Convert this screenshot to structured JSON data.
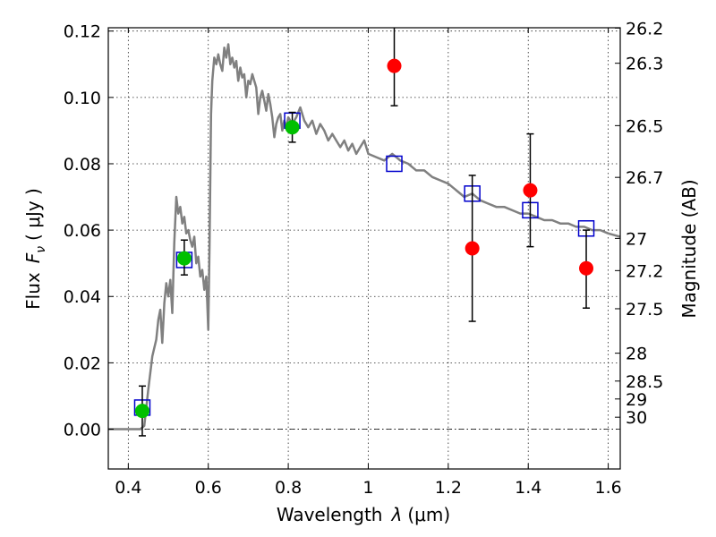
{
  "chart_data": {
    "type": "scatter",
    "xlabel_text": "Wavelength",
    "xlabel_symbol": "λ",
    "xlabel_unit": "(μm)",
    "ylabel_text": "Flux",
    "ylabel_symbol": "F",
    "ylabel_subscript": "ν",
    "ylabel_unit": "( μJy )",
    "y2label": "Magnitude (AB)",
    "xlim": [
      0.35,
      1.63
    ],
    "ylim": [
      -0.012,
      0.121
    ],
    "grid": true,
    "x_ticks": [
      {
        "value": 0.4,
        "label": "0.4"
      },
      {
        "value": 0.6,
        "label": "0.6"
      },
      {
        "value": 0.8,
        "label": "0.8"
      },
      {
        "value": 1.0,
        "label": "1"
      },
      {
        "value": 1.2,
        "label": "1.2"
      },
      {
        "value": 1.4,
        "label": "1.4"
      },
      {
        "value": 1.6,
        "label": "1.6"
      }
    ],
    "y_ticks": [
      {
        "value": 0.0,
        "label": "0.00"
      },
      {
        "value": 0.02,
        "label": "0.02"
      },
      {
        "value": 0.04,
        "label": "0.04"
      },
      {
        "value": 0.06,
        "label": "0.06"
      },
      {
        "value": 0.08,
        "label": "0.08"
      },
      {
        "value": 0.1,
        "label": "0.10"
      },
      {
        "value": 0.12,
        "label": "0.12"
      }
    ],
    "mag_ticks": [
      {
        "flux": 0.1209,
        "label": "26.2"
      },
      {
        "flux": 0.1103,
        "label": "26.3"
      },
      {
        "flux": 0.0915,
        "label": "26.5"
      },
      {
        "flux": 0.0759,
        "label": "26.7"
      },
      {
        "flux": 0.0575,
        "label": "27"
      },
      {
        "flux": 0.0478,
        "label": "27.2"
      },
      {
        "flux": 0.0363,
        "label": "27.5"
      },
      {
        "flux": 0.0229,
        "label": "28"
      },
      {
        "flux": 0.0145,
        "label": "28.5"
      },
      {
        "flux": 0.0091,
        "label": "29"
      },
      {
        "flux": 0.0036,
        "label": "30"
      }
    ],
    "model_sed": {
      "color": "#808080",
      "x": [
        0.35,
        0.43,
        0.44,
        0.45,
        0.46,
        0.47,
        0.475,
        0.48,
        0.485,
        0.49,
        0.495,
        0.5,
        0.505,
        0.51,
        0.515,
        0.52,
        0.525,
        0.53,
        0.535,
        0.54,
        0.545,
        0.55,
        0.555,
        0.56,
        0.565,
        0.57,
        0.575,
        0.58,
        0.585,
        0.59,
        0.595,
        0.6,
        0.603,
        0.607,
        0.61,
        0.615,
        0.62,
        0.625,
        0.63,
        0.635,
        0.64,
        0.645,
        0.65,
        0.655,
        0.66,
        0.665,
        0.67,
        0.675,
        0.68,
        0.685,
        0.69,
        0.695,
        0.7,
        0.705,
        0.71,
        0.715,
        0.72,
        0.725,
        0.73,
        0.735,
        0.74,
        0.745,
        0.75,
        0.755,
        0.76,
        0.765,
        0.77,
        0.775,
        0.78,
        0.785,
        0.79,
        0.795,
        0.8,
        0.81,
        0.82,
        0.83,
        0.84,
        0.85,
        0.86,
        0.87,
        0.88,
        0.89,
        0.9,
        0.91,
        0.92,
        0.93,
        0.94,
        0.95,
        0.96,
        0.97,
        0.98,
        0.99,
        1.0,
        1.02,
        1.04,
        1.06,
        1.08,
        1.1,
        1.12,
        1.14,
        1.16,
        1.18,
        1.2,
        1.22,
        1.24,
        1.26,
        1.28,
        1.3,
        1.32,
        1.34,
        1.36,
        1.38,
        1.4,
        1.42,
        1.44,
        1.46,
        1.48,
        1.5,
        1.52,
        1.54,
        1.56,
        1.58,
        1.6,
        1.63
      ],
      "y": [
        0.0,
        0.0,
        0.001,
        0.012,
        0.022,
        0.027,
        0.033,
        0.036,
        0.026,
        0.038,
        0.044,
        0.04,
        0.045,
        0.035,
        0.056,
        0.07,
        0.065,
        0.067,
        0.062,
        0.064,
        0.059,
        0.06,
        0.057,
        0.055,
        0.058,
        0.05,
        0.052,
        0.046,
        0.048,
        0.042,
        0.046,
        0.03,
        0.055,
        0.095,
        0.105,
        0.112,
        0.11,
        0.113,
        0.11,
        0.108,
        0.115,
        0.112,
        0.116,
        0.11,
        0.112,
        0.109,
        0.111,
        0.105,
        0.109,
        0.106,
        0.107,
        0.1,
        0.105,
        0.104,
        0.107,
        0.105,
        0.103,
        0.095,
        0.1,
        0.102,
        0.099,
        0.096,
        0.101,
        0.098,
        0.094,
        0.088,
        0.092,
        0.094,
        0.095,
        0.09,
        0.093,
        0.091,
        0.094,
        0.092,
        0.094,
        0.097,
        0.093,
        0.091,
        0.093,
        0.089,
        0.092,
        0.09,
        0.087,
        0.089,
        0.087,
        0.085,
        0.087,
        0.084,
        0.086,
        0.083,
        0.085,
        0.087,
        0.083,
        0.082,
        0.081,
        0.083,
        0.081,
        0.08,
        0.078,
        0.078,
        0.076,
        0.075,
        0.074,
        0.072,
        0.07,
        0.071,
        0.069,
        0.068,
        0.067,
        0.067,
        0.066,
        0.065,
        0.065,
        0.064,
        0.063,
        0.063,
        0.062,
        0.062,
        0.061,
        0.061,
        0.06,
        0.06,
        0.059,
        0.058
      ]
    },
    "series": [
      {
        "marker": "square",
        "color": "#0000cc",
        "x": [
          0.435,
          0.54,
          0.81,
          1.065,
          1.26,
          1.405,
          1.545
        ],
        "y": [
          0.0065,
          0.051,
          0.093,
          0.08,
          0.071,
          0.066,
          0.0605
        ]
      },
      {
        "marker": "circle",
        "color": "#00c000",
        "x": [
          0.435,
          0.54,
          0.81
        ],
        "y": [
          0.0055,
          0.0515,
          0.091
        ],
        "yerr_low": [
          0.0075,
          0.005,
          0.0045
        ],
        "yerr_high": [
          0.0075,
          0.0055,
          0.0045
        ]
      },
      {
        "marker": "circle",
        "color": "#ff0000",
        "x": [
          1.065,
          1.26,
          1.405,
          1.545
        ],
        "y": [
          0.1095,
          0.0545,
          0.072,
          0.0485
        ],
        "yerr_low": [
          0.012,
          0.022,
          0.017,
          0.012
        ],
        "yerr_high": [
          0.014,
          0.022,
          0.017,
          0.0115
        ]
      }
    ]
  }
}
